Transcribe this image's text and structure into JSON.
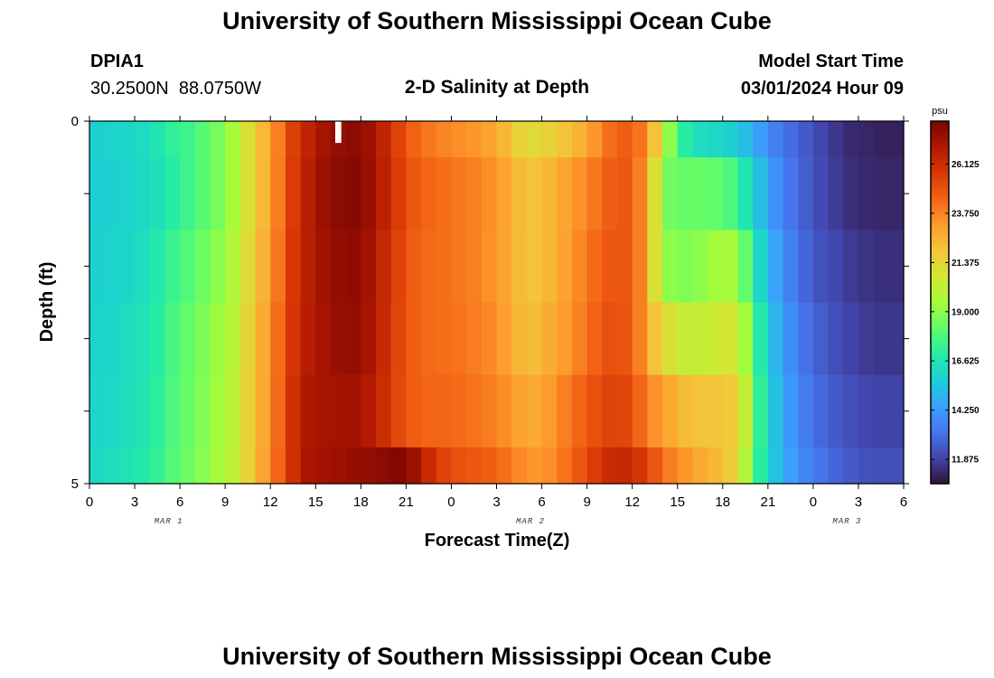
{
  "header": {
    "title": "University of Southern Mississippi Ocean Cube",
    "station_id": "DPIA1",
    "coords": "30.2500N  88.0750W",
    "subtitle": "2-D Salinity at Depth",
    "start_label": "Model Start Time",
    "start_value": "03/01/2024 Hour 09"
  },
  "footer": {
    "title": "University of Southern Mississippi Ocean Cube"
  },
  "chart_data": {
    "type": "heatmap",
    "title": "2-D Salinity at Depth",
    "xlabel": "Forecast Time(Z)",
    "ylabel": "Depth (ft)",
    "x_hours_since_start": [
      0,
      54
    ],
    "x_ticks": [
      "0",
      "3",
      "6",
      "9",
      "12",
      "15",
      "18",
      "21",
      "0",
      "3",
      "6",
      "9",
      "12",
      "15",
      "18",
      "21",
      "0",
      "3",
      "6"
    ],
    "date_labels": [
      {
        "text": "MAR 1",
        "tick_index": 1.75
      },
      {
        "text": "MAR 2",
        "tick_index": 9.75
      },
      {
        "text": "MAR 3",
        "tick_index": 16.75
      }
    ],
    "y_ticks": [
      "0",
      "5"
    ],
    "ylim": [
      0,
      5
    ],
    "depth_levels": 5,
    "colorbar": {
      "unit": "psu",
      "range": [
        10.7,
        28.2
      ],
      "tick_labels": [
        "26.125",
        "23.750",
        "21.375",
        "19.000",
        "16.625",
        "14.250",
        "11.875"
      ],
      "colors": [
        "#30123b",
        "#4145ab",
        "#4675ed",
        "#39a2fc",
        "#1bcfd4",
        "#24eca6",
        "#61fc6c",
        "#a4fc3b",
        "#d1e834",
        "#f3c63a",
        "#fe9b2d",
        "#f36315",
        "#d93806",
        "#b11901",
        "#7a0403"
      ]
    },
    "missing_marker": {
      "hour": 16.5,
      "depth": 0.3
    },
    "salinity_psu_by_depth_row": [
      [
        15.8,
        15.9,
        16.0,
        16.2,
        16.6,
        17.2,
        17.5,
        18.0,
        18.6,
        19.5,
        21.0,
        22.3,
        23.8,
        25.5,
        26.5,
        27.2,
        27.6,
        27.8,
        27.4,
        26.5,
        25.4,
        24.5,
        24.0,
        23.7,
        23.5,
        23.3,
        23.0,
        22.4,
        21.5,
        21.2,
        21.5,
        22.0,
        22.5,
        23.3,
        24.2,
        24.6,
        24.1,
        22.0,
        19.0,
        17.0,
        16.3,
        16.1,
        15.8,
        15.2,
        14.3,
        13.5,
        13.0,
        12.5,
        12.0,
        11.6,
        11.3,
        11.2,
        11.1,
        11.1
      ],
      [
        15.7,
        15.8,
        15.9,
        16.1,
        16.4,
        17.0,
        17.5,
        18.0,
        18.6,
        19.5,
        21.0,
        22.3,
        23.9,
        25.6,
        26.7,
        27.4,
        27.8,
        27.9,
        27.5,
        26.6,
        25.6,
        24.8,
        24.4,
        24.2,
        24.0,
        23.8,
        23.5,
        23.0,
        22.3,
        22.0,
        22.4,
        22.9,
        23.4,
        24.0,
        24.6,
        24.8,
        23.8,
        21.0,
        18.5,
        18.3,
        18.3,
        18.2,
        17.8,
        16.6,
        15.2,
        14.0,
        13.2,
        12.6,
        12.1,
        11.7,
        11.4,
        11.3,
        11.2,
        11.2
      ],
      [
        15.8,
        15.9,
        16.0,
        16.3,
        16.8,
        17.4,
        17.9,
        18.4,
        19.0,
        19.8,
        21.2,
        22.5,
        24.0,
        25.7,
        26.7,
        27.3,
        27.6,
        27.7,
        27.3,
        26.4,
        25.4,
        24.6,
        24.3,
        24.2,
        24.0,
        23.8,
        23.4,
        22.9,
        22.2,
        22.0,
        22.4,
        23.0,
        23.6,
        24.3,
        24.8,
        24.8,
        23.8,
        21.0,
        19.0,
        18.8,
        19.0,
        19.4,
        19.6,
        18.2,
        16.0,
        14.5,
        13.5,
        12.8,
        12.3,
        12.0,
        11.7,
        11.5,
        11.4,
        11.4
      ],
      [
        15.9,
        16.0,
        16.2,
        16.5,
        17.0,
        17.7,
        18.2,
        18.7,
        19.3,
        20.0,
        21.4,
        22.7,
        24.2,
        25.8,
        26.8,
        27.2,
        27.5,
        27.6,
        27.2,
        26.3,
        25.3,
        24.6,
        24.3,
        24.2,
        24.1,
        23.9,
        23.6,
        23.1,
        22.4,
        22.2,
        22.7,
        23.2,
        23.8,
        24.5,
        25.0,
        24.9,
        23.8,
        22.0,
        21.0,
        20.4,
        20.3,
        20.6,
        20.8,
        19.4,
        16.8,
        15.0,
        13.9,
        13.1,
        12.6,
        12.2,
        11.9,
        11.7,
        11.6,
        11.6
      ],
      [
        16.0,
        16.1,
        16.3,
        16.6,
        17.1,
        17.8,
        18.3,
        18.8,
        19.4,
        20.1,
        21.5,
        22.8,
        24.3,
        26.0,
        27.0,
        27.2,
        27.3,
        27.3,
        26.9,
        26.1,
        25.2,
        24.6,
        24.4,
        24.4,
        24.3,
        24.1,
        23.9,
        23.5,
        23.0,
        22.8,
        23.2,
        23.8,
        24.4,
        25.0,
        25.4,
        25.3,
        24.4,
        23.4,
        22.8,
        22.2,
        22.0,
        22.0,
        21.8,
        20.3,
        17.2,
        15.3,
        14.2,
        13.4,
        12.9,
        12.5,
        12.2,
        12.0,
        11.9,
        11.9
      ],
      [
        16.1,
        16.3,
        16.5,
        16.8,
        17.3,
        17.9,
        18.4,
        18.9,
        19.5,
        20.2,
        21.5,
        22.9,
        24.4,
        26.0,
        27.1,
        27.3,
        27.4,
        27.6,
        27.6,
        27.8,
        28.0,
        27.4,
        26.2,
        25.4,
        25.0,
        24.8,
        24.6,
        24.2,
        23.6,
        23.3,
        23.5,
        24.1,
        24.8,
        25.6,
        26.2,
        26.4,
        25.8,
        24.8,
        23.9,
        23.3,
        22.8,
        22.4,
        21.8,
        19.8,
        17.0,
        15.4,
        14.4,
        13.7,
        13.2,
        12.8,
        12.5,
        12.3,
        12.2,
        12.2
      ]
    ]
  }
}
